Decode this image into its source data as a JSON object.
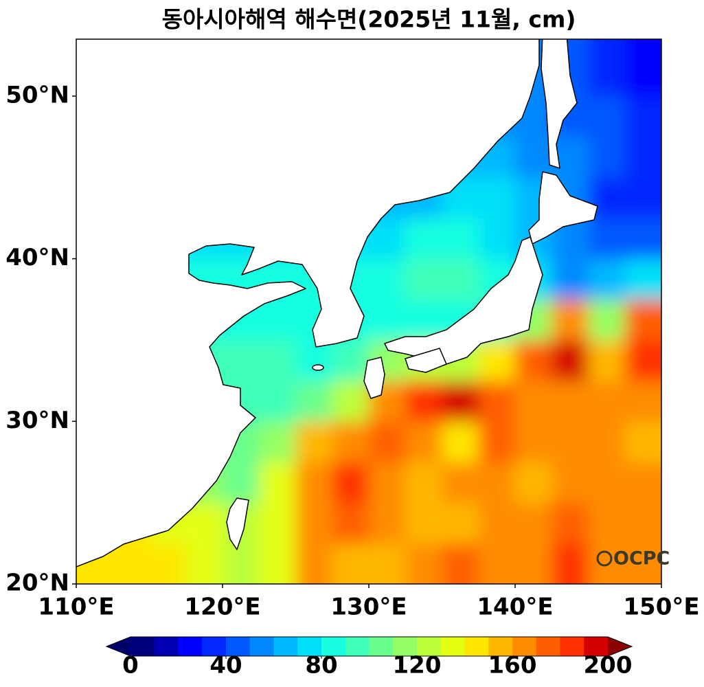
{
  "title": "동아시아해역 해수면(2025년 11월, cm)",
  "map": {
    "xlim": [
      110,
      150
    ],
    "ylim": [
      20,
      53.5
    ],
    "xticks": [
      {
        "value": 110,
        "label": "110°E"
      },
      {
        "value": 120,
        "label": "120°E"
      },
      {
        "value": 130,
        "label": "130°E"
      },
      {
        "value": 140,
        "label": "140°E"
      },
      {
        "value": 150,
        "label": "150°E"
      }
    ],
    "yticks": [
      {
        "value": 20,
        "label": "20°N"
      },
      {
        "value": 30,
        "label": "30°N"
      },
      {
        "value": 40,
        "label": "40°N"
      },
      {
        "value": 50,
        "label": "50°N"
      }
    ]
  },
  "field": {
    "lon": [
      111.25,
      113.75,
      116.25,
      118.75,
      121.25,
      123.75,
      126.25,
      128.75,
      131.25,
      133.75,
      136.25,
      138.75,
      141.25,
      143.75,
      146.25,
      148.75
    ],
    "lat": [
      21.25,
      23.75,
      26.25,
      28.75,
      31.25,
      33.75,
      36.25,
      38.75,
      41.25,
      43.75,
      46.25,
      48.75,
      51.25
    ],
    "values": [
      [
        145,
        140,
        140,
        135,
        125,
        130,
        160,
        155,
        150,
        165,
        170,
        160,
        165,
        180,
        165,
        160
      ],
      [
        140,
        140,
        135,
        130,
        120,
        135,
        165,
        170,
        160,
        155,
        150,
        160,
        160,
        170,
        165,
        160
      ],
      [
        135,
        130,
        125,
        115,
        105,
        130,
        165,
        180,
        165,
        150,
        160,
        165,
        155,
        165,
        160,
        160
      ],
      [
        125,
        120,
        110,
        105,
        100,
        115,
        150,
        165,
        170,
        165,
        140,
        170,
        165,
        160,
        160,
        155
      ],
      [
        110,
        105,
        100,
        95,
        95,
        95,
        105,
        120,
        160,
        185,
        195,
        175,
        165,
        165,
        160,
        165
      ],
      [
        100,
        95,
        92,
        90,
        90,
        90,
        88,
        92,
        110,
        125,
        120,
        140,
        175,
        190,
        150,
        185
      ],
      [
        90,
        88,
        88,
        86,
        85,
        85,
        85,
        85,
        88,
        85,
        85,
        90,
        115,
        165,
        110,
        175
      ],
      [
        88,
        86,
        86,
        85,
        85,
        80,
        80,
        80,
        88,
        90,
        90,
        85,
        75,
        55,
        60,
        75
      ],
      [
        80,
        78,
        76,
        75,
        72,
        72,
        72,
        70,
        75,
        82,
        80,
        75,
        60,
        55,
        45,
        45
      ],
      [
        70,
        70,
        70,
        70,
        70,
        68,
        65,
        62,
        60,
        65,
        70,
        70,
        60,
        55,
        35,
        30
      ],
      [
        65,
        65,
        65,
        65,
        65,
        62,
        60,
        60,
        60,
        60,
        60,
        60,
        55,
        50,
        40,
        30
      ],
      [
        60,
        60,
        60,
        60,
        60,
        60,
        58,
        58,
        58,
        58,
        56,
        55,
        55,
        45,
        40,
        30
      ],
      [
        58,
        58,
        58,
        58,
        58,
        58,
        56,
        56,
        56,
        56,
        55,
        55,
        55,
        45,
        30,
        25
      ]
    ]
  },
  "colorbar": {
    "levels": [
      0,
      10,
      20,
      30,
      40,
      50,
      60,
      70,
      80,
      90,
      100,
      110,
      120,
      130,
      140,
      150,
      160,
      170,
      180,
      190,
      200
    ],
    "colors": [
      "#00007f",
      "#0000b2",
      "#0000ff",
      "#0028ff",
      "#0058ff",
      "#0088ff",
      "#00b8ff",
      "#00e0f8",
      "#17ffe0",
      "#40ffb8",
      "#6aff8c",
      "#94ff64",
      "#bcff3a",
      "#e4ff12",
      "#ffe600",
      "#ffb800",
      "#ff8c00",
      "#ff5e00",
      "#ff3000",
      "#d40000"
    ],
    "under": "#00006a",
    "over": "#8b0000",
    "ticks": [
      0,
      40,
      80,
      120,
      160,
      200
    ]
  },
  "logo": "OCPC"
}
